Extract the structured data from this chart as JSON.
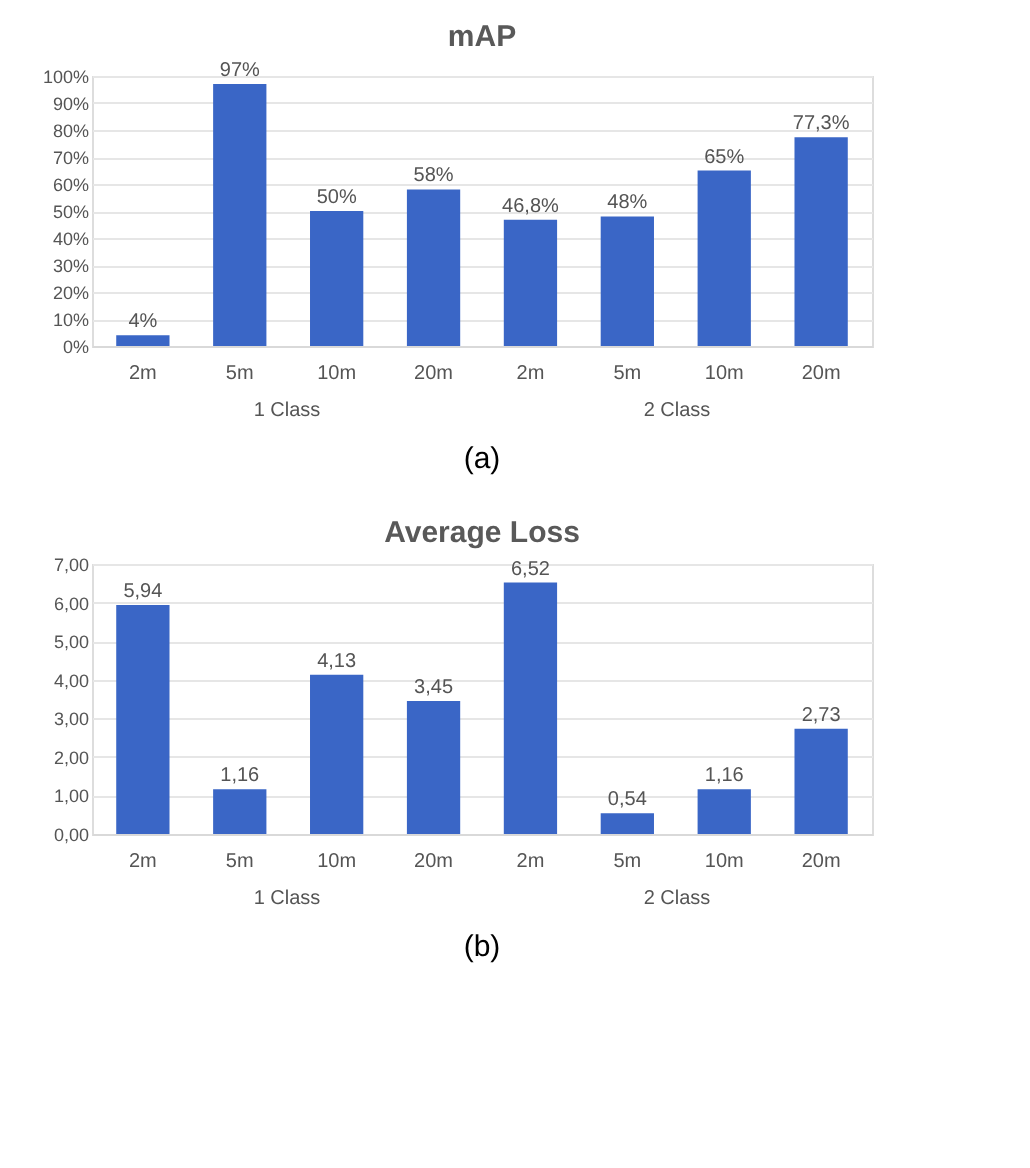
{
  "chart_data": [
    {
      "type": "bar",
      "title": "mAP",
      "categories": [
        "2m",
        "5m",
        "10m",
        "20m",
        "2m",
        "5m",
        "10m",
        "20m"
      ],
      "series": [
        {
          "color": "#3a66c6",
          "values": [
            4,
            97,
            50,
            58,
            46.8,
            48,
            65,
            77.3
          ],
          "value_labels": [
            "4%",
            "97%",
            "50%",
            "58%",
            "46,8%",
            "48%",
            "65%",
            "77,3%"
          ]
        }
      ],
      "ylim": [
        0,
        100
      ],
      "yticks": [
        {
          "value": 0,
          "label": "0%"
        },
        {
          "value": 10,
          "label": "10%"
        },
        {
          "value": 20,
          "label": "20%"
        },
        {
          "value": 30,
          "label": "30%"
        },
        {
          "value": 40,
          "label": "40%"
        },
        {
          "value": 50,
          "label": "50%"
        },
        {
          "value": 60,
          "label": "60%"
        },
        {
          "value": 70,
          "label": "70%"
        },
        {
          "value": 80,
          "label": "80%"
        },
        {
          "value": 90,
          "label": "90%"
        },
        {
          "value": 100,
          "label": "100%"
        }
      ],
      "grid": "y",
      "annotations": [
        "1 Class",
        "2 Class",
        "(a)"
      ]
    },
    {
      "type": "bar",
      "title": "Average Loss",
      "categories": [
        "2m",
        "5m",
        "10m",
        "20m",
        "2m",
        "5m",
        "10m",
        "20m"
      ],
      "series": [
        {
          "color": "#3a66c6",
          "values": [
            5.94,
            1.16,
            4.13,
            3.45,
            6.52,
            0.54,
            1.16,
            2.73
          ],
          "value_labels": [
            "5,94",
            "1,16",
            "4,13",
            "3,45",
            "6,52",
            "0,54",
            "1,16",
            "2,73"
          ]
        }
      ],
      "ylim": [
        0,
        7
      ],
      "yticks": [
        {
          "value": 0,
          "label": "0,00"
        },
        {
          "value": 1,
          "label": "1,00"
        },
        {
          "value": 2,
          "label": "2,00"
        },
        {
          "value": 3,
          "label": "3,00"
        },
        {
          "value": 4,
          "label": "4,00"
        },
        {
          "value": 5,
          "label": "5,00"
        },
        {
          "value": 6,
          "label": "6,00"
        },
        {
          "value": 7,
          "label": "7,00"
        }
      ],
      "grid": "y",
      "annotations": [
        "1 Class",
        "2 Class",
        "(b)"
      ]
    }
  ]
}
